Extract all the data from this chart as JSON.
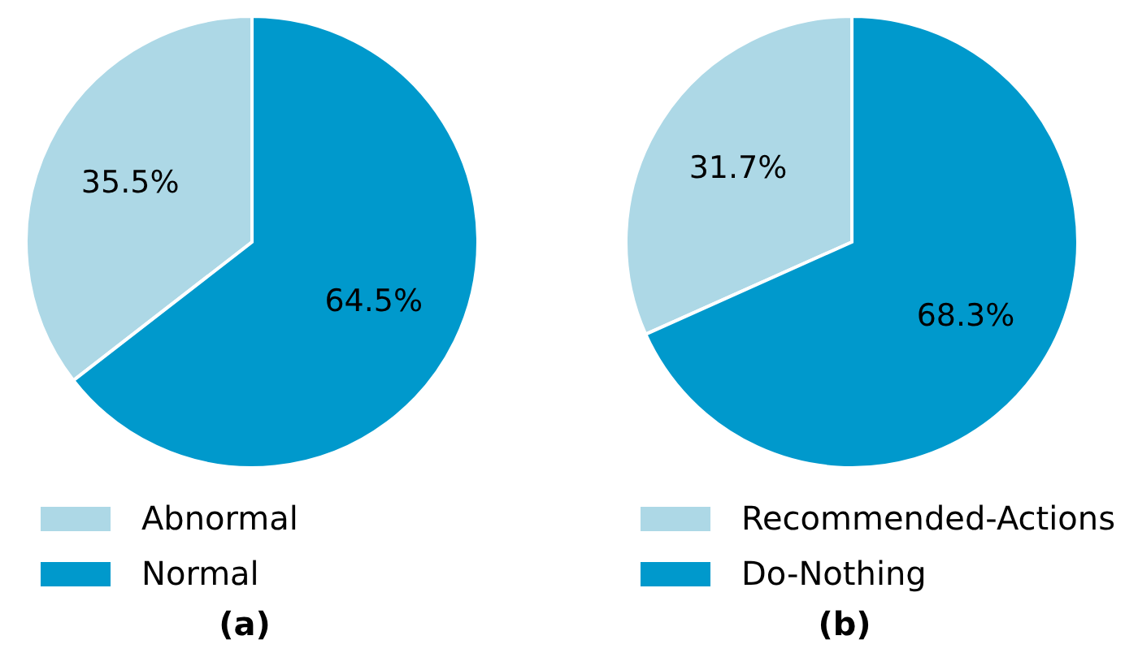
{
  "chart_data": [
    {
      "type": "pie",
      "title": "(a)",
      "categories": [
        "Abnormal",
        "Normal"
      ],
      "values": [
        35.5,
        64.5
      ],
      "colors": [
        "#add8e6",
        "#0099cc"
      ],
      "value_labels": [
        "35.5%",
        "64.5%"
      ],
      "legend": "bottom"
    },
    {
      "type": "pie",
      "title": "(b)",
      "categories": [
        "Recommended-Actions",
        "Do-Nothing"
      ],
      "values": [
        31.7,
        68.3
      ],
      "colors": [
        "#add8e6",
        "#0099cc"
      ],
      "value_labels": [
        "31.7%",
        "68.3%"
      ],
      "legend": "bottom"
    }
  ]
}
